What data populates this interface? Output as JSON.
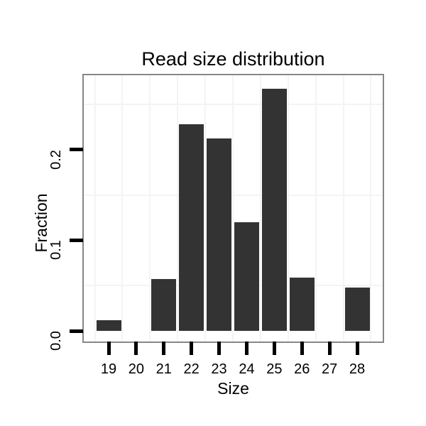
{
  "chart_data": {
    "type": "bar",
    "title": "Read size distribution",
    "xlabel": "Size",
    "ylabel": "Fraction",
    "categories": [
      "19",
      "20",
      "21",
      "22",
      "23",
      "24",
      "25",
      "26",
      "27",
      "28"
    ],
    "values": [
      0.012,
      0,
      0.057,
      0.228,
      0.212,
      0.12,
      0.267,
      0.059,
      0,
      0.048
    ],
    "ylim": [
      0,
      0.282
    ],
    "ytick_values": [
      0,
      0.1,
      0.2
    ],
    "ytick_labels": [
      "0.0",
      "0.1",
      "0.2"
    ],
    "y_minor_gridlines": [
      0.05,
      0.15,
      0.25
    ],
    "x_minor_gridlines_at_half_steps": true,
    "grid": "minor gridlines only, very light gray, no major gridlines visible",
    "legend": "none",
    "colors": {
      "bar_fill": "#333333",
      "panel_border": "#878787",
      "gridline": "#f4f4f4",
      "tick": "#000000",
      "text": "#000000",
      "background": "#ffffff"
    }
  }
}
